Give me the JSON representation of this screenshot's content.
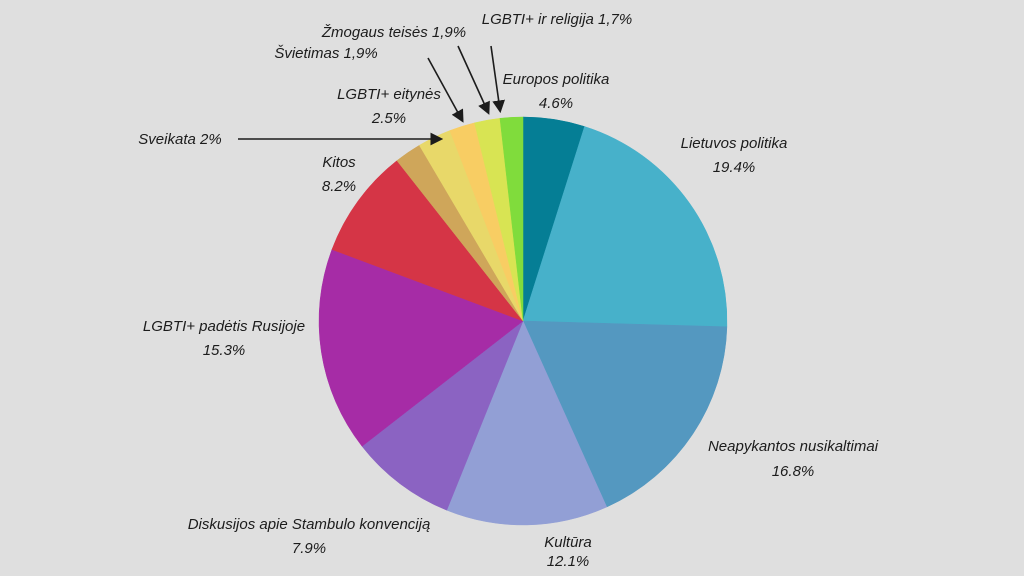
{
  "chart_data": {
    "type": "pie",
    "title": "",
    "slices": [
      {
        "label": "Europos politika",
        "value_text": "4.6%",
        "value": 4.6,
        "color": "#057e95"
      },
      {
        "label": "Lietuvos politika",
        "value_text": "19.4%",
        "value": 19.4,
        "color": "#47b1ca"
      },
      {
        "label": "Neapykantos nusikaltimai",
        "value_text": "16.8%",
        "value": 16.8,
        "color": "#5498c0"
      },
      {
        "label": "Kultūra",
        "value_text": "12.1%",
        "value": 12.1,
        "color": "#929fd5"
      },
      {
        "label": "Diskusijos apie Stambulo konvenciją",
        "value_text": "7.9%",
        "value": 7.9,
        "color": "#8b63c2"
      },
      {
        "label": "LGBTI+ padėtis Rusijoje",
        "value_text": "15.3%",
        "value": 15.3,
        "color": "#a62ca6"
      },
      {
        "label": "Kitos",
        "value_text": "8.2%",
        "value": 8.2,
        "color": "#d53546"
      },
      {
        "label": "Sveikata",
        "value_text": "2%",
        "value": 2.0,
        "color": "#cfa65a"
      },
      {
        "label": "LGBTI+ eitynės",
        "value_text": "2.5%",
        "value": 2.5,
        "color": "#e8d869"
      },
      {
        "label": "Švietimas",
        "value_text": "1,9%",
        "value": 1.9,
        "color": "#f8cd63"
      },
      {
        "label": "Žmogaus teisės",
        "value_text": "1,9%",
        "value": 1.9,
        "color": "#d8e453"
      },
      {
        "label": "LGBTI+ ir  religija",
        "value_text": "1,7%",
        "value": 1.7,
        "color": "#80dc3c"
      }
    ],
    "labels": {
      "europos": {
        "line1": "Europos politika",
        "line2": "4.6%"
      },
      "lietuvos": {
        "line1": "Lietuvos politika",
        "line2": "19.4%"
      },
      "neapykantos": {
        "line1": "Neapykantos nusikaltimai",
        "line2": "16.8%"
      },
      "kultura": {
        "line1": "Kultūra",
        "line2": "12.1%"
      },
      "diskusijos": {
        "line1": "Diskusijos apie Stambulo konvenciją",
        "line2": "7.9%"
      },
      "rusija": {
        "line1": "LGBTI+ padėtis Rusijoje",
        "line2": "15.3%"
      },
      "kitos": {
        "line1": "Kitos",
        "line2": "8.2%"
      },
      "eitynes": {
        "line1": "LGBTI+ eitynės",
        "line2": "2.5%"
      },
      "sveikata": {
        "line1": "Sveikata 2%"
      },
      "svietimas": {
        "line1": "Švietimas 1,9%"
      },
      "zmogaus": {
        "line1": "Žmogaus teisės 1,9%"
      },
      "religija": {
        "line1": "LGBTI+ ir  religija 1,7%"
      }
    }
  }
}
